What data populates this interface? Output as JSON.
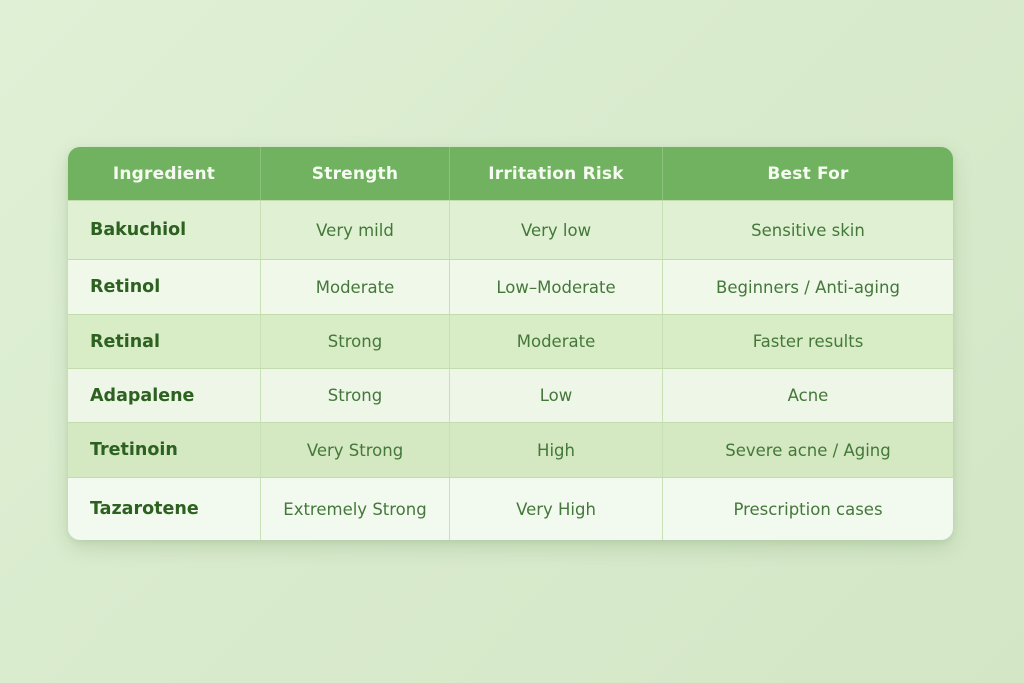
{
  "page": {
    "background_color": "#d9ebcd",
    "accent_color": "#70b25f",
    "header_text_color": "#f6fbf2",
    "ingredient_text_color": "#2c611f",
    "value_text_color": "#44783a"
  },
  "table": {
    "columns": [
      {
        "label": "Ingredient"
      },
      {
        "label": "Strength"
      },
      {
        "label": "Irritation Risk"
      },
      {
        "label": "Best For"
      }
    ],
    "rows": [
      {
        "ingredient": "Bakuchiol",
        "strength": "Very mild",
        "irritation_risk": "Very low",
        "best_for": "Sensitive skin"
      },
      {
        "ingredient": "Retinol",
        "strength": "Moderate",
        "irritation_risk": "Low–Moderate",
        "best_for": "Beginners / Anti-aging"
      },
      {
        "ingredient": "Retinal",
        "strength": "Strong",
        "irritation_risk": "Moderate",
        "best_for": "Faster results"
      },
      {
        "ingredient": "Adapalene",
        "strength": "Strong",
        "irritation_risk": "Low",
        "best_for": "Acne"
      },
      {
        "ingredient": "Tretinoin",
        "strength": "Very Strong",
        "irritation_risk": "High",
        "best_for": "Severe acne / Aging"
      },
      {
        "ingredient": "Tazarotene",
        "strength": "Extremely Strong",
        "irritation_risk": "Very High",
        "best_for": "Prescription cases"
      }
    ]
  }
}
